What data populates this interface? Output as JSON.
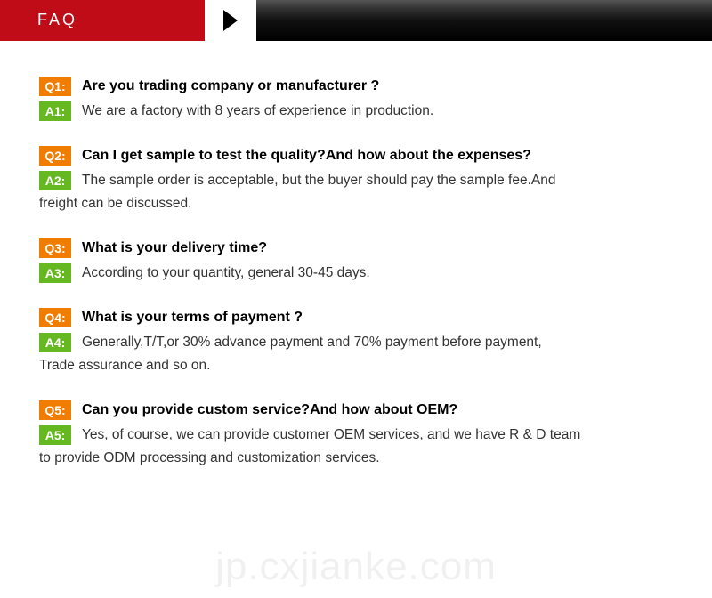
{
  "header": {
    "title": "FAQ"
  },
  "colors": {
    "header_bg": "#c00c17",
    "q_badge": "#f07d00",
    "a_badge": "#66b821"
  },
  "faqs": [
    {
      "q_label": "Q1:",
      "a_label": "A1:",
      "question": "Are you trading company or manufacturer ?",
      "answer": "We are a factory with 8 years of experience in production.",
      "answer_cont": ""
    },
    {
      "q_label": "Q2:",
      "a_label": "A2:",
      "question": "Can I get sample to test the quality?And how about the expenses?",
      "answer": "The sample order is acceptable, but the buyer should pay the sample fee.And",
      "answer_cont": "freight can be discussed."
    },
    {
      "q_label": "Q3:",
      "a_label": "A3:",
      "question": "What is your delivery time?",
      "answer": " According to your quantity, general 30-45 days.",
      "answer_cont": ""
    },
    {
      "q_label": "Q4:",
      "a_label": "A4:",
      "question": "What is your terms of payment ?",
      "answer": " Generally,T/T,or 30% advance payment and 70% payment before payment,",
      "answer_cont": "Trade assurance and so on."
    },
    {
      "q_label": "Q5:",
      "a_label": "A5:",
      "question": "Can you provide custom service?And how about OEM?",
      "answer": "  Yes, of course, we can provide customer OEM services, and we have R & D team",
      "answer_cont": "to provide ODM processing and customization services."
    }
  ],
  "watermark": "jp.cxjianke.com"
}
